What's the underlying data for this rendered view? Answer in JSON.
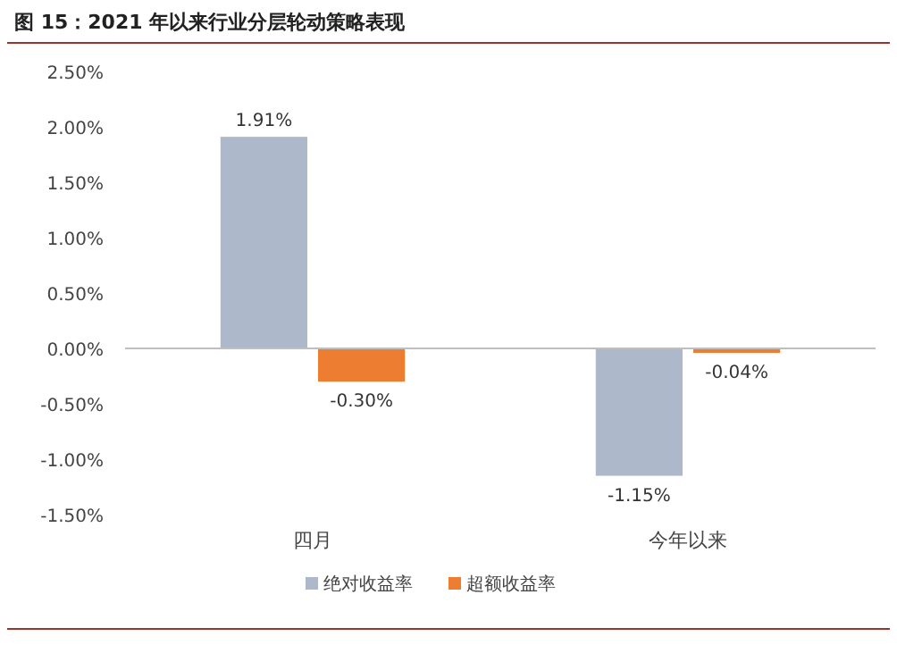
{
  "chart_data": {
    "type": "bar",
    "title": "图 15：2021 年以来行业分层轮动策略表现",
    "categories": [
      "四月",
      "今年以来"
    ],
    "series": [
      {
        "name": "绝对收益率",
        "color": "#adb9ca",
        "values": [
          1.91,
          -1.15
        ],
        "value_labels": [
          "1.91%",
          "-1.15%"
        ]
      },
      {
        "name": "超额收益率",
        "color": "#ed7d31",
        "values": [
          -0.3,
          -0.04
        ],
        "value_labels": [
          "-0.30%",
          "-0.04%"
        ]
      }
    ],
    "ylim": [
      -1.5,
      2.5
    ],
    "yticks": [
      {
        "value": -1.5,
        "label": "-1.50%"
      },
      {
        "value": -1.0,
        "label": "-1.00%"
      },
      {
        "value": -0.5,
        "label": "-0.50%"
      },
      {
        "value": 0,
        "label": "0.00%"
      },
      {
        "value": 0.5,
        "label": "0.50%"
      },
      {
        "value": 1.0,
        "label": "1.00%"
      },
      {
        "value": 1.5,
        "label": "1.50%"
      },
      {
        "value": 2.0,
        "label": "2.00%"
      },
      {
        "value": 2.5,
        "label": "2.50%"
      }
    ],
    "legend": "bottom"
  }
}
